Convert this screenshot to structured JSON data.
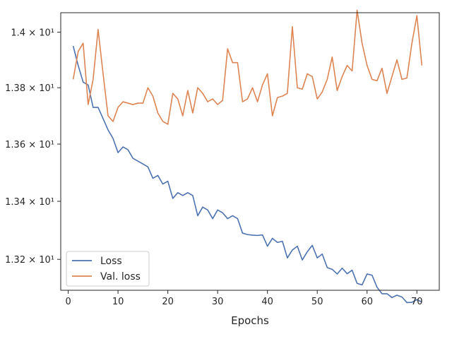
{
  "chart_data": {
    "type": "line",
    "xlabel": "Epochs",
    "ylabel": "",
    "xlim": [
      -1.5,
      74.5
    ],
    "ylim": [
      13.0947,
      14.0708
    ],
    "yscale": "log",
    "x_ticks": [
      0,
      10,
      20,
      30,
      40,
      50,
      60,
      70
    ],
    "x_tick_labels": [
      "0",
      "10",
      "20",
      "30",
      "40",
      "50",
      "60",
      "70"
    ],
    "y_ticks": [
      13.2,
      13.4,
      13.6,
      13.8,
      14.0
    ],
    "y_tick_labels": [
      "1.32 × 10¹",
      "1.34 × 10¹",
      "1.36 × 10¹",
      "1.38 × 10¹",
      "1.4 × 10¹"
    ],
    "grid": false,
    "legend_position": "lower-left",
    "x": [
      1,
      2,
      3,
      4,
      5,
      6,
      7,
      8,
      9,
      10,
      11,
      12,
      13,
      14,
      15,
      16,
      17,
      18,
      19,
      20,
      21,
      22,
      23,
      24,
      25,
      26,
      27,
      28,
      29,
      30,
      31,
      32,
      33,
      34,
      35,
      36,
      37,
      38,
      39,
      40,
      41,
      42,
      43,
      44,
      45,
      46,
      47,
      48,
      49,
      50,
      51,
      52,
      53,
      54,
      55,
      56,
      57,
      58,
      59,
      60,
      61,
      62,
      63,
      64,
      65,
      66,
      67,
      68,
      69,
      70,
      71
    ],
    "series": [
      {
        "name": "Loss",
        "color": "#4c72b0",
        "values": [
          13.95,
          13.88,
          13.82,
          13.81,
          13.73,
          13.73,
          13.69,
          13.65,
          13.62,
          13.57,
          13.59,
          13.58,
          13.55,
          13.54,
          13.53,
          13.52,
          13.48,
          13.49,
          13.46,
          13.47,
          13.41,
          13.43,
          13.42,
          13.43,
          13.42,
          13.35,
          13.38,
          13.37,
          13.34,
          13.37,
          13.36,
          13.34,
          13.35,
          13.34,
          13.29,
          13.285,
          13.283,
          13.282,
          13.284,
          13.245,
          13.272,
          13.258,
          13.262,
          13.205,
          13.232,
          13.245,
          13.198,
          13.226,
          13.248,
          13.205,
          13.218,
          13.172,
          13.166,
          13.15,
          13.17,
          13.151,
          13.163,
          13.118,
          13.113,
          13.15,
          13.146,
          13.105,
          13.083,
          13.083,
          13.07,
          13.078,
          13.072,
          13.053,
          13.054,
          13.063,
          13.055
        ]
      },
      {
        "name": "Val. loss",
        "color": "#dd8452",
        "values": [
          13.83,
          13.93,
          13.96,
          13.74,
          13.83,
          14.01,
          13.85,
          13.7,
          13.68,
          13.73,
          13.75,
          13.745,
          13.74,
          13.745,
          13.745,
          13.8,
          13.77,
          13.71,
          13.68,
          13.67,
          13.78,
          13.76,
          13.7,
          13.79,
          13.71,
          13.8,
          13.78,
          13.75,
          13.76,
          13.74,
          13.755,
          13.94,
          13.89,
          13.89,
          13.75,
          13.76,
          13.8,
          13.75,
          13.81,
          13.85,
          13.7,
          13.765,
          13.77,
          13.78,
          14.02,
          13.8,
          13.795,
          13.85,
          13.84,
          13.76,
          13.785,
          13.83,
          13.91,
          13.79,
          13.84,
          13.88,
          13.86,
          14.08,
          13.96,
          13.88,
          13.83,
          13.825,
          13.87,
          13.78,
          13.84,
          13.9,
          13.83,
          13.835,
          13.96,
          14.06,
          13.88
        ]
      }
    ]
  }
}
